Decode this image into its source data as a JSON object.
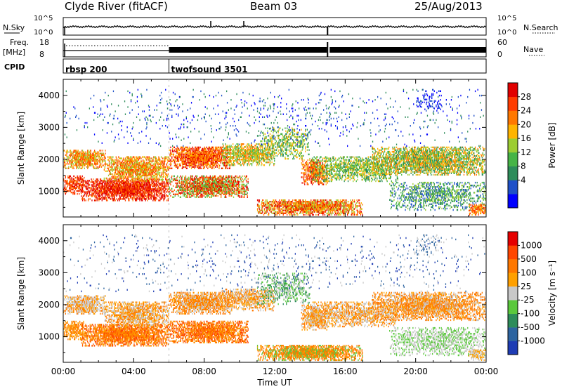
{
  "header": {
    "station": "Clyde River (fitACF)",
    "beam": "Beam 03",
    "date": "25/Aug/2013"
  },
  "summary_panels": {
    "nsky": {
      "label": "N.Sky",
      "ticks": [
        "10^5",
        "10^0"
      ]
    },
    "nsearch": {
      "label": "N.Search",
      "ticks": [
        "10^5",
        "10^0"
      ]
    },
    "freq": {
      "label_line1": "Freq.",
      "label_line2": "[MHz]",
      "ticks": [
        "18",
        "8"
      ]
    },
    "nave": {
      "label": "Nave",
      "ticks": [
        "60",
        "0"
      ]
    },
    "cpid": {
      "label": "CPID",
      "modes": [
        {
          "name": "rbsp 200",
          "start_h": 0,
          "end_h": 6
        },
        {
          "name": "twofsound 3501",
          "start_h": 6,
          "end_h": 24
        }
      ]
    }
  },
  "chart_data": [
    {
      "type": "heatmap",
      "name": "Power",
      "xlabel": "",
      "ylabel": "Slant Range [km]",
      "xlim": [
        0,
        24
      ],
      "ylim": [
        200,
        4500
      ],
      "yticks": [
        1000,
        2000,
        3000,
        4000
      ],
      "colorbar": {
        "label": "Power [dB]",
        "ticks": [
          "28",
          "24",
          "20",
          "16",
          "12",
          "8",
          "4"
        ],
        "colors": [
          "#0000ff",
          "#1e50c8",
          "#2d8c5a",
          "#46b446",
          "#9ccd32",
          "#ffb400",
          "#ff7800",
          "#ff3c00",
          "#e10000"
        ]
      }
    },
    {
      "type": "heatmap",
      "name": "Velocity",
      "xlabel": "Time UT",
      "ylabel": "Slant Range [km]",
      "xlim": [
        0,
        24
      ],
      "ylim": [
        200,
        4500
      ],
      "yticks": [
        1000,
        2000,
        3000,
        4000
      ],
      "xticks": [
        "00:00",
        "04:00",
        "08:00",
        "12:00",
        "16:00",
        "20:00",
        "00:00"
      ],
      "colorbar": {
        "label": "Velocity [m s⁻¹]",
        "ticks": [
          "1000",
          "500",
          "100",
          "25",
          "-25",
          "-100",
          "-500",
          "-1000"
        ],
        "colors": [
          "#1e3cb4",
          "#2d64a0",
          "#2d8c5a",
          "#5ac83c",
          "#c8c8c8",
          "#ffa000",
          "#ff7800",
          "#ff4600",
          "#e60000"
        ]
      }
    }
  ]
}
